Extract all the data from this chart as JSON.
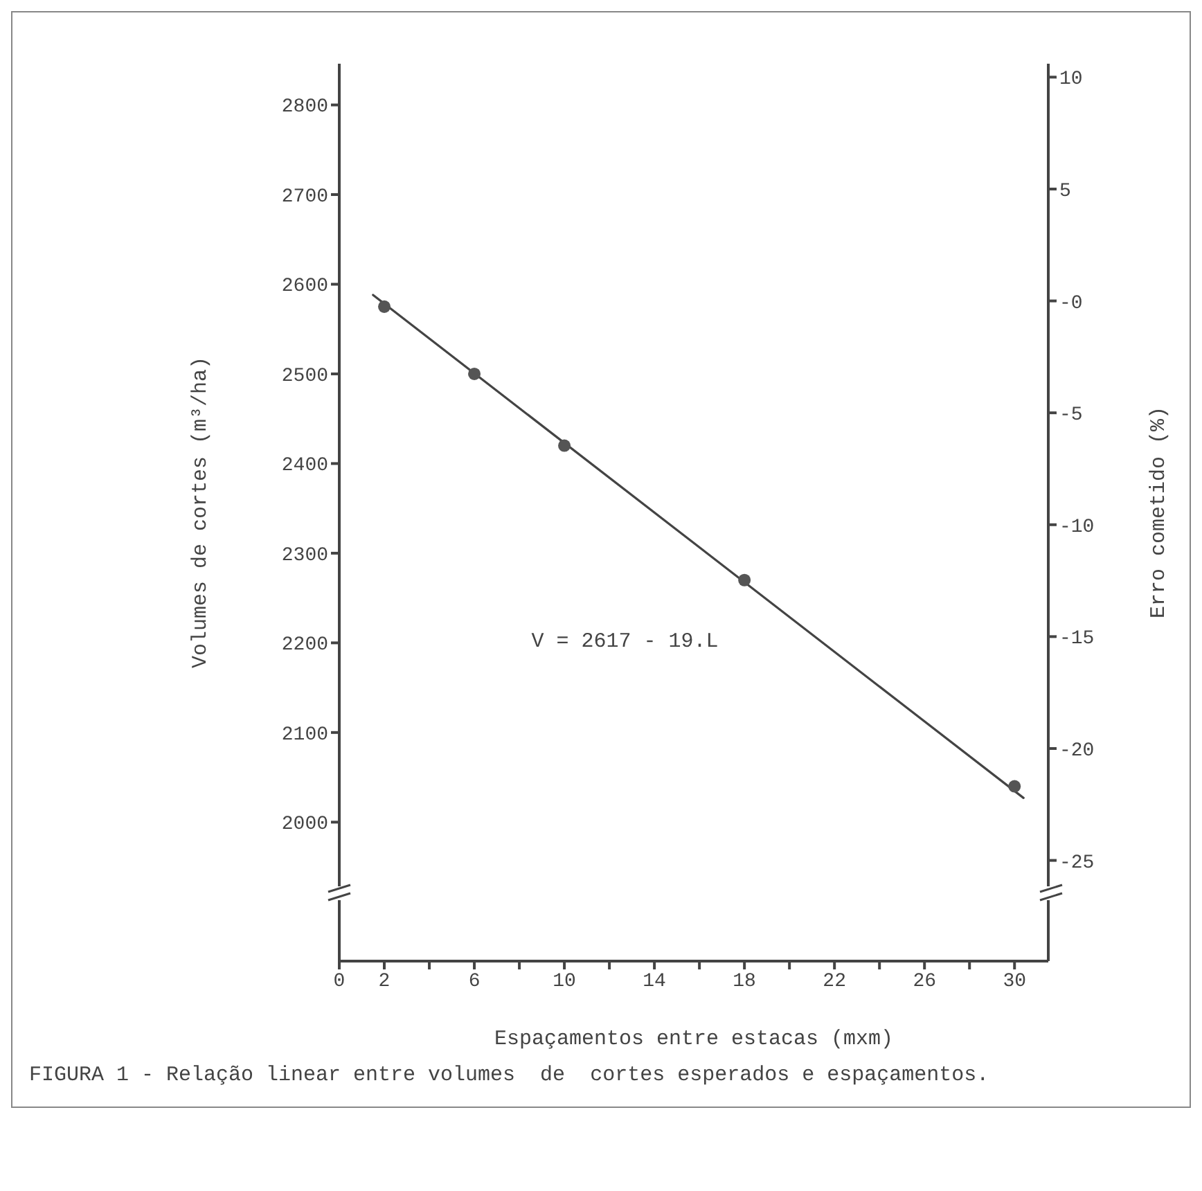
{
  "chart_data": {
    "type": "scatter",
    "xlabel": "Espaçamentos entre estacas (mxm)",
    "ylabel": "Volumes de cortes (m³/ha)",
    "y2label": "Erro cometido (%)",
    "x": [
      2,
      6,
      10,
      18,
      30
    ],
    "series": [
      {
        "color": "#555555",
        "marker": "circle",
        "values": [
          2575,
          2500,
          2420,
          2270,
          2040
        ]
      },
      {
        "type": "line",
        "color": "#444444",
        "marker": "none",
        "line_style": "solid",
        "x": [
          1.5,
          30.4
        ],
        "values": [
          2588,
          2027
        ]
      }
    ],
    "xlim": [
      0,
      31.5
    ],
    "xticks": [
      {
        "value": 0,
        "label": "0"
      },
      2,
      {
        "value": 4,
        "label": null
      },
      6,
      {
        "value": 8,
        "label": null
      },
      10,
      {
        "value": 12,
        "label": null
      },
      14,
      {
        "value": 16,
        "label": null
      },
      18,
      {
        "value": 20,
        "label": null
      },
      22,
      {
        "value": 24,
        "label": null
      },
      26,
      {
        "value": 28,
        "label": null
      },
      30
    ],
    "ylim": [
      1845,
      2846
    ],
    "yticks": [
      2000,
      2100,
      2200,
      2300,
      2400,
      2500,
      2600,
      2700,
      2800
    ],
    "y2lim": [
      -29.5,
      10.6
    ],
    "y2ticks": [
      -25,
      -20,
      -15,
      -10,
      -5,
      {
        "value": 0,
        "label": "-0"
      },
      5,
      10
    ],
    "annotations": [
      "V = 2617 - 19.L",
      "FIGURA 1 - Relação linear entre volumes  de  cortes esperados e espaçamentos."
    ],
    "grid": false,
    "legend": false
  }
}
